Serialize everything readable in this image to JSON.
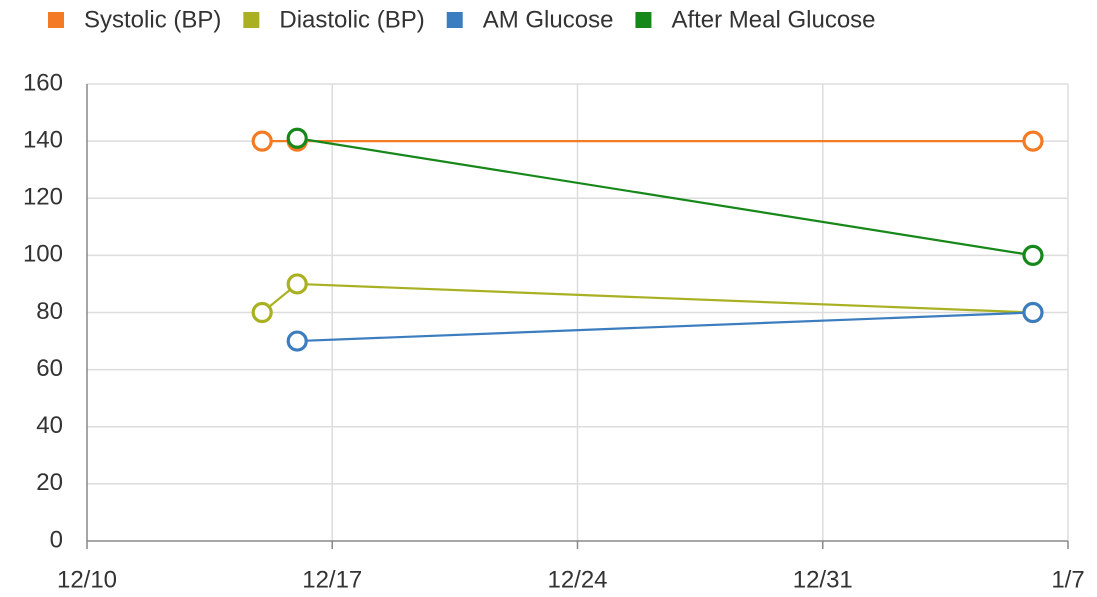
{
  "chart_data": {
    "type": "line",
    "x": [
      "12/15",
      "12/16",
      "1/6"
    ],
    "series": [
      {
        "name": "Systolic (BP)",
        "color": "#f47a24",
        "values": [
          140,
          140,
          140
        ]
      },
      {
        "name": "Diastolic (BP)",
        "color": "#a9b123",
        "values": [
          80,
          90,
          80
        ]
      },
      {
        "name": "AM Glucose",
        "color": "#3b7dbf",
        "values": [
          null,
          70,
          80
        ]
      },
      {
        "name": "After Meal Glucose",
        "color": "#16881a",
        "values": [
          null,
          141,
          100
        ]
      }
    ],
    "xlim": [
      "12/10",
      "1/7"
    ],
    "xticks": [
      "12/10",
      "12/17",
      "12/24",
      "12/31",
      "1/7"
    ],
    "ylim": [
      0,
      160
    ],
    "yticks": [
      0,
      20,
      40,
      60,
      80,
      100,
      120,
      140,
      160
    ],
    "grid": true,
    "legend": "top"
  }
}
